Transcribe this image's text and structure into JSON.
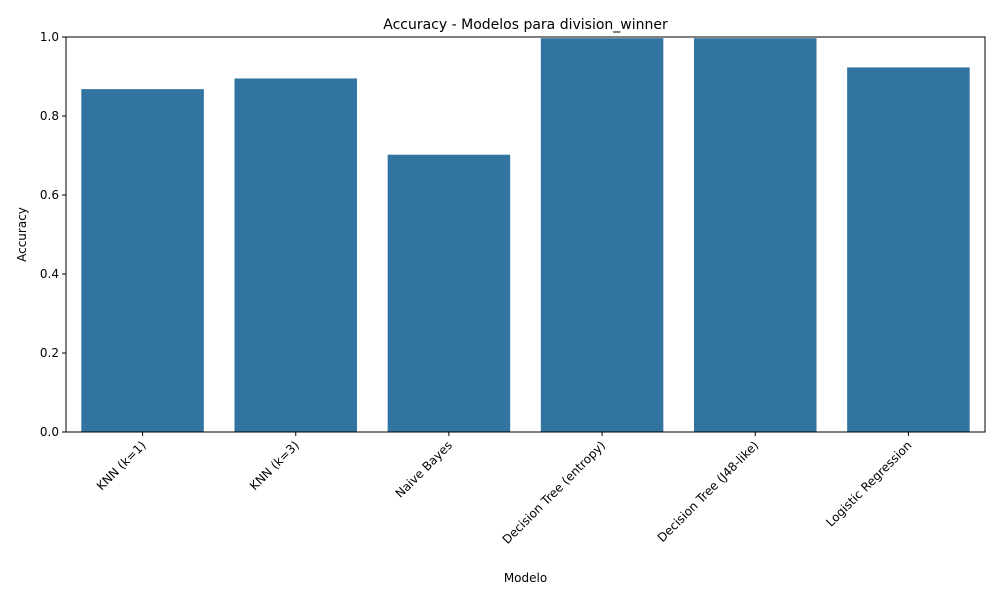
{
  "chart_data": {
    "type": "bar",
    "title": "Accuracy - Modelos para division_winner",
    "xlabel": "Modelo",
    "ylabel": "Accuracy",
    "categories": [
      "KNN (k=1)",
      "KNN (k=3)",
      "Naive Bayes",
      "Decision Tree (entropy)",
      "Decision Tree (J48-like)",
      "Logistic Regression"
    ],
    "values": [
      0.868,
      0.895,
      0.702,
      0.997,
      0.997,
      0.923
    ],
    "ylim": [
      0,
      1.0
    ],
    "yticks": [
      "0.0",
      "0.2",
      "0.4",
      "0.6",
      "0.8",
      "1.0"
    ],
    "grid": false,
    "bar_color": "#3274a1"
  }
}
